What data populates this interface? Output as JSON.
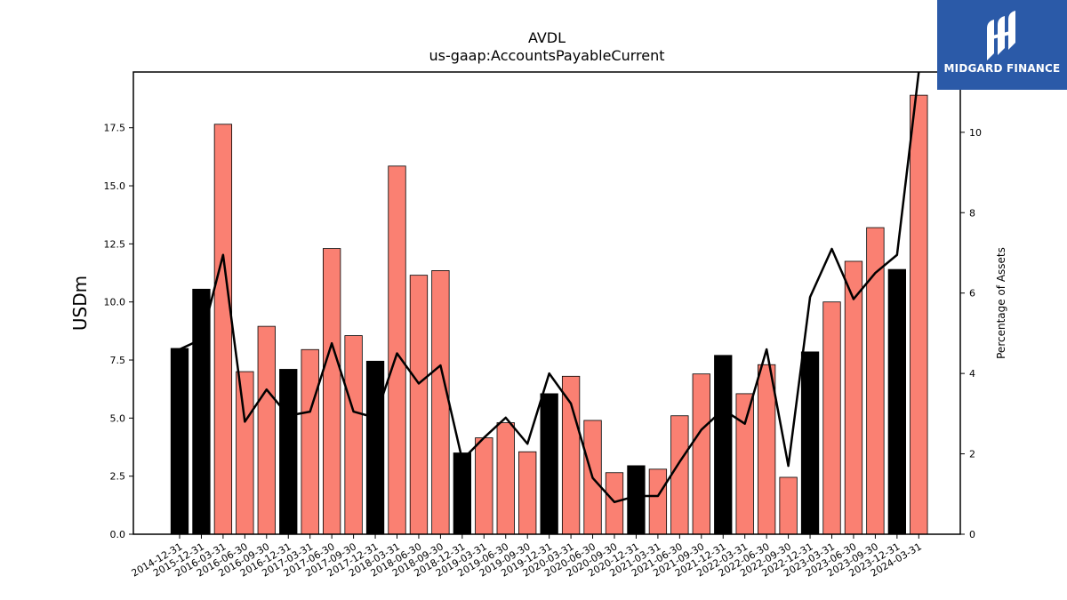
{
  "chart_data": {
    "type": "bar",
    "title": "AVDL",
    "subtitle": "us-gaap:AccountsPayableCurrent",
    "ylabel": "USDm",
    "y2label": "Percentage of Assets",
    "ylim": [
      0,
      19.9
    ],
    "y2lim": [
      0,
      11.5
    ],
    "yticks": [
      "0.0",
      "2.5",
      "5.0",
      "7.5",
      "10.0",
      "12.5",
      "15.0",
      "17.5"
    ],
    "y2ticks": [
      "0",
      "2",
      "4",
      "6",
      "8",
      "10"
    ],
    "categories": [
      "2014-12-31",
      "2015-12-31",
      "2016-03-31",
      "2016-06-30",
      "2016-09-30",
      "2016-12-31",
      "2017-03-31",
      "2017-06-30",
      "2017-09-30",
      "2017-12-31",
      "2018-03-31",
      "2018-06-30",
      "2018-09-30",
      "2018-12-31",
      "2019-03-31",
      "2019-06-30",
      "2019-09-30",
      "2019-12-31",
      "2020-03-31",
      "2020-06-30",
      "2020-09-30",
      "2020-12-31",
      "2021-03-31",
      "2021-06-30",
      "2021-09-30",
      "2021-12-31",
      "2022-03-31",
      "2022-06-30",
      "2022-09-30",
      "2022-12-31",
      "2023-03-31",
      "2023-06-30",
      "2023-09-30",
      "2023-12-31",
      "2024-03-31"
    ],
    "values": [
      8.0,
      10.55,
      17.65,
      7.0,
      8.95,
      7.1,
      7.95,
      12.3,
      8.55,
      7.45,
      15.85,
      11.15,
      11.35,
      3.5,
      4.15,
      4.8,
      3.55,
      6.05,
      6.8,
      4.9,
      2.65,
      2.95,
      2.8,
      5.1,
      6.9,
      7.7,
      6.05,
      7.3,
      2.45,
      7.85,
      10.0,
      11.75,
      13.2,
      11.4,
      18.9
    ],
    "annual": [
      true,
      true,
      false,
      false,
      false,
      true,
      false,
      false,
      false,
      true,
      false,
      false,
      false,
      true,
      false,
      false,
      false,
      true,
      false,
      false,
      false,
      true,
      false,
      false,
      false,
      true,
      false,
      false,
      false,
      true,
      false,
      false,
      false,
      true,
      false
    ],
    "pct_assets": [
      4.6,
      4.85,
      6.95,
      2.8,
      3.6,
      2.95,
      3.05,
      4.75,
      3.05,
      2.9,
      4.5,
      3.75,
      4.2,
      1.85,
      2.4,
      2.9,
      2.25,
      4.0,
      3.25,
      1.4,
      0.8,
      0.95,
      0.95,
      1.8,
      2.6,
      3.1,
      2.75,
      4.6,
      1.7,
      5.9,
      7.1,
      5.85,
      6.5,
      6.95,
      11.5
    ],
    "colors": {
      "annual": "#000000",
      "quarter": "#fa8072",
      "line": "#000000"
    },
    "grid": false,
    "legend": "none"
  },
  "logo": {
    "text": "MIDGARD FINANCE"
  }
}
